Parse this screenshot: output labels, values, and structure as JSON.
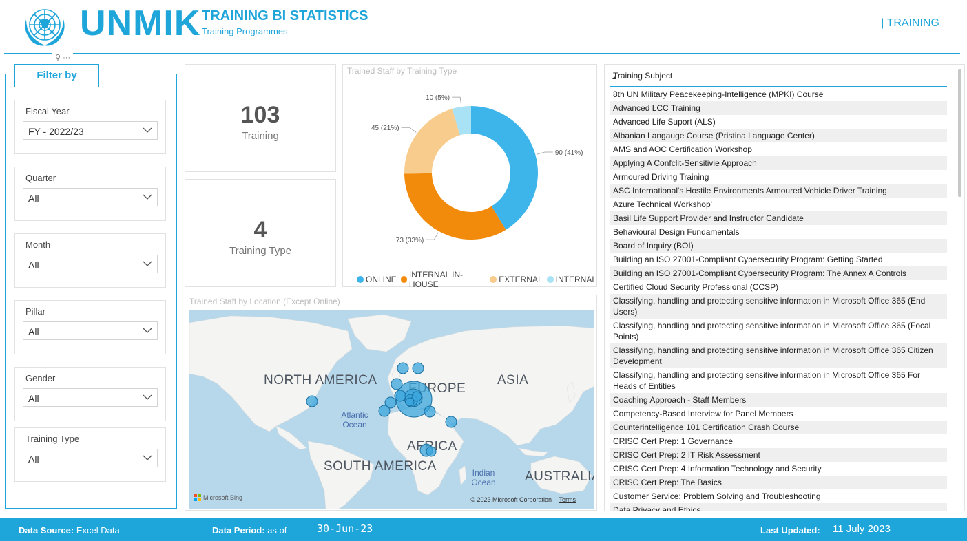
{
  "header": {
    "brand": "UNMIK",
    "title": "TRAINING BI STATISTICS",
    "subtitle": "Training Programmes",
    "nav_link": "| TRAINING",
    "brand_color": "#1ea5d9"
  },
  "filters": {
    "title": "Filter by",
    "slicers": [
      {
        "label": "Fiscal Year",
        "value": "FY - 2022/23"
      },
      {
        "label": "Quarter",
        "value": "All"
      },
      {
        "label": "Month",
        "value": "All"
      },
      {
        "label": "Pillar",
        "value": "All"
      },
      {
        "label": "Gender",
        "value": "All"
      },
      {
        "label": "Training Type",
        "value": "All"
      }
    ]
  },
  "kpis": {
    "training": {
      "value": "103",
      "label": "Training"
    },
    "training_type": {
      "value": "4",
      "label": "Training Type"
    }
  },
  "chart_data": {
    "type": "pie",
    "title": "Trained Staff by Training Type",
    "categories": [
      "ONLINE",
      "INTERNAL IN-HOUSE",
      "EXTERNAL",
      "INTERNAL"
    ],
    "values": [
      90,
      73,
      45,
      10
    ],
    "data_labels": [
      "90 (41%)",
      "73 (33%)",
      "45 (21%)",
      "10 (5%)"
    ],
    "colors": [
      "#3eb5ea",
      "#f28a0b",
      "#f7cc8c",
      "#a9e1f5"
    ],
    "legend_position": "bottom"
  },
  "map": {
    "title": "Trained Staff by Location (Except Online)",
    "continents": [
      "NORTH AMERICA",
      "EUROPE",
      "ASIA",
      "AFRICA",
      "SOUTH AMERICA",
      "AUSTRALIA"
    ],
    "oceans": [
      "Atlantic Ocean",
      "Indian Ocean"
    ],
    "provider": "Microsoft Bing",
    "copyright": "© 2023 Microsoft Corporation",
    "terms": "Terms",
    "bubble_color": "#3aa6dc"
  },
  "table": {
    "header": "Training Subject",
    "rows": [
      "8th UN Military Peacekeeping-Intelligence (MPKI) Course",
      "Advanced LCC Training",
      "Advanced Life Suport (ALS)",
      "Albanian Langauge Course (Pristina Language Center)",
      "AMS and AOC Certification Workshop",
      "Applying A Confclit-Sensitivie Approach",
      "Armoured Driving Training",
      "ASC International's Hostile Environments Armoured Vehicle Driver Training",
      "Azure Technical Workshop'",
      "Basil Life Support Provider and Instructor Candidate",
      "Behavioural Design Fundamentals",
      "Board of Inquiry (BOI)",
      "Building an ISO 27001-Compliant Cybersecurity Program: Getting Started",
      "Building an ISO 27001-Compliant Cybersecurity Program: The Annex A Controls",
      "Certified Cloud Security Professional (CCSP)",
      "Classifying, handling and protecting sensitive information in Microsoft Office 365 (End Users)",
      "Classifying, handling and protecting sensitive information in Microsoft Office 365 (Focal Points)",
      "Classifying, handling and protecting sensitive information in Microsoft Office 365 Citizen Development",
      "Classifying, handling and protecting sensitive information in Microsoft Office 365 For Heads of Entities",
      "Coaching Approach - Staff Members",
      "Competency-Based Interview for Panel Members",
      "Counterintelligence 101 Certification Crash Course",
      "CRISC Cert Prep: 1 Governance",
      "CRISC Cert Prep: 2 IT Risk Assessment",
      "CRISC Cert Prep: 4 Information Technology and Security",
      "CRISC Cert Prep: The Basics",
      "Customer Service: Problem Solving and Troubleshooting",
      "Data Privacy and Ethics"
    ]
  },
  "footer": {
    "source_label": "Data Source:",
    "source_value": "Excel Data",
    "period_label": "Data Period:",
    "period_prefix": "as of",
    "period_date": "30-Jun-23",
    "updated_label": "Last Updated:",
    "updated_date": "11 July 2023"
  }
}
